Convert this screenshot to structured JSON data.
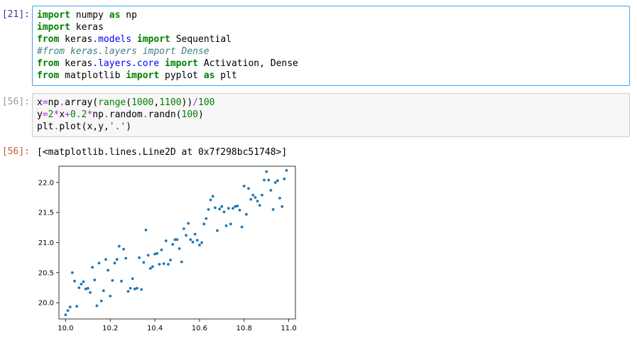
{
  "cells": [
    {
      "prompt": "[21]:",
      "lines": [
        [
          [
            "kw",
            "import"
          ],
          [
            "t",
            " numpy "
          ],
          [
            "kw",
            "as"
          ],
          [
            "t",
            " np"
          ]
        ],
        [
          [
            "kw",
            "import"
          ],
          [
            "t",
            " keras"
          ]
        ],
        [
          [
            "kw",
            "from"
          ],
          [
            "t",
            " keras"
          ],
          [
            "mod",
            ".models"
          ],
          [
            "t",
            " "
          ],
          [
            "kw",
            "import"
          ],
          [
            "t",
            " Sequential"
          ]
        ],
        [
          [
            "cmt",
            "#from keras.layers import Dense"
          ]
        ],
        [
          [
            "kw",
            "from"
          ],
          [
            "t",
            " keras"
          ],
          [
            "mod",
            ".layers.core"
          ],
          [
            "t",
            " "
          ],
          [
            "kw",
            "import"
          ],
          [
            "t",
            " Activation, Dense"
          ]
        ],
        [
          [
            "kw",
            "from"
          ],
          [
            "t",
            " matplotlib "
          ],
          [
            "kw",
            "import"
          ],
          [
            "t",
            " pyplot "
          ],
          [
            "kw",
            "as"
          ],
          [
            "t",
            " plt"
          ]
        ]
      ]
    },
    {
      "prompt": "[56]:",
      "lines": [
        [
          [
            "t",
            "x"
          ],
          [
            "op",
            "="
          ],
          [
            "t",
            "np"
          ],
          [
            "op",
            "."
          ],
          [
            "t",
            "array"
          ],
          [
            "t",
            "("
          ],
          [
            "fn",
            "range"
          ],
          [
            "t",
            "("
          ],
          [
            "num",
            "1000"
          ],
          [
            "t",
            ","
          ],
          [
            "num",
            "1100"
          ],
          [
            "t",
            "))"
          ],
          [
            "op",
            "/"
          ],
          [
            "num",
            "100"
          ]
        ],
        [
          [
            "t",
            "y"
          ],
          [
            "op",
            "="
          ],
          [
            "num",
            "2"
          ],
          [
            "op",
            "*"
          ],
          [
            "t",
            "x"
          ],
          [
            "op",
            "+"
          ],
          [
            "num",
            "0.2"
          ],
          [
            "op",
            "*"
          ],
          [
            "t",
            "np"
          ],
          [
            "op",
            "."
          ],
          [
            "t",
            "random"
          ],
          [
            "op",
            "."
          ],
          [
            "t",
            "randn"
          ],
          [
            "t",
            "("
          ],
          [
            "num",
            "100"
          ],
          [
            "t",
            ")"
          ]
        ],
        [
          [
            "t",
            "plt"
          ],
          [
            "op",
            "."
          ],
          [
            "t",
            "plot"
          ],
          [
            "t",
            "(x,y,"
          ],
          [
            "str",
            "'.'"
          ],
          [
            "t",
            ")"
          ]
        ]
      ]
    }
  ],
  "output": {
    "prompt": "[56]:",
    "text": "[<matplotlib.lines.Line2D at 0x7f298bc51748>]"
  },
  "chart_data": {
    "type": "scatter",
    "xlim": [
      9.97,
      11.03
    ],
    "ylim": [
      19.73,
      22.27
    ],
    "xticks": [
      "10.0",
      "10.2",
      "10.4",
      "10.6",
      "10.8",
      "11.0"
    ],
    "yticks": [
      "20.0",
      "20.5",
      "21.0",
      "21.5",
      "22.0"
    ],
    "point_color": "#1f77b4",
    "grid": false,
    "series": [
      {
        "x": [
          10.0,
          10.01,
          10.02,
          10.03,
          10.04,
          10.05,
          10.06,
          10.07,
          10.08,
          10.09,
          10.1,
          10.11,
          10.12,
          10.13,
          10.14,
          10.15,
          10.16,
          10.17,
          10.18,
          10.19,
          10.2,
          10.21,
          10.22,
          10.23,
          10.24,
          10.25,
          10.26,
          10.27,
          10.28,
          10.29,
          10.3,
          10.31,
          10.32,
          10.33,
          10.34,
          10.35,
          10.36,
          10.37,
          10.38,
          10.39,
          10.4,
          10.41,
          10.42,
          10.43,
          10.44,
          10.45,
          10.46,
          10.47,
          10.48,
          10.49,
          10.5,
          10.51,
          10.52,
          10.53,
          10.54,
          10.55,
          10.56,
          10.57,
          10.58,
          10.59,
          10.6,
          10.61,
          10.62,
          10.63,
          10.64,
          10.65,
          10.66,
          10.67,
          10.68,
          10.69,
          10.7,
          10.71,
          10.72,
          10.73,
          10.74,
          10.75,
          10.76,
          10.77,
          10.78,
          10.79,
          10.8,
          10.81,
          10.82,
          10.83,
          10.84,
          10.85,
          10.86,
          10.87,
          10.88,
          10.89,
          10.9,
          10.91,
          10.92,
          10.93,
          10.94,
          10.95,
          10.96,
          10.97,
          10.98,
          10.99
        ],
        "y": [
          19.8,
          19.87,
          19.93,
          20.5,
          20.36,
          19.94,
          20.25,
          20.31,
          20.35,
          20.23,
          20.24,
          20.17,
          20.59,
          20.38,
          19.95,
          20.66,
          20.03,
          20.2,
          20.72,
          20.54,
          20.11,
          20.37,
          20.66,
          20.72,
          20.94,
          20.36,
          20.89,
          20.74,
          20.19,
          20.24,
          20.4,
          20.23,
          20.24,
          20.75,
          20.22,
          20.67,
          21.21,
          20.79,
          20.57,
          20.6,
          20.81,
          20.82,
          20.64,
          20.88,
          20.65,
          21.03,
          20.64,
          20.71,
          20.97,
          21.05,
          21.05,
          20.9,
          20.68,
          21.23,
          21.12,
          21.32,
          21.05,
          21.01,
          21.14,
          21.04,
          20.96,
          21.0,
          21.31,
          21.4,
          21.55,
          21.71,
          21.77,
          21.58,
          21.2,
          21.56,
          21.6,
          21.51,
          21.28,
          21.57,
          21.31,
          21.57,
          21.6,
          21.61,
          21.54,
          21.26,
          21.94,
          21.47,
          21.9,
          21.72,
          21.79,
          21.75,
          21.69,
          21.62,
          21.79,
          22.04,
          22.18,
          22.04,
          21.87,
          21.55,
          22.0,
          22.03,
          21.74,
          21.6,
          22.06,
          22.2
        ]
      }
    ]
  }
}
